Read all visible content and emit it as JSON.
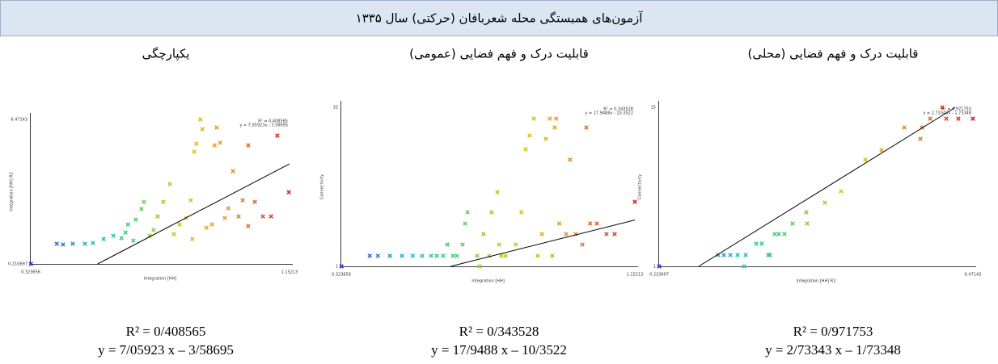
{
  "title": "آزمون‌های همبستگی محله شعربافان (حرکتی) سال ۱۳۳۵",
  "chart_data": [
    {
      "type": "scatter",
      "title": "یکپارچگی",
      "xlabel": "Integration [HH]",
      "ylabel": "Integration [HH] R2",
      "xlim": [
        0.323656,
        1.15213
      ],
      "ylim": [
        0.210697,
        6.47143
      ],
      "xticks": [
        0.323656,
        1.15213
      ],
      "yticks": [
        0.210697,
        6.47143
      ],
      "colormap": [
        "#2b2bd0",
        "#2f7fd6",
        "#22c2c2",
        "#3ccf7a",
        "#a6cc2e",
        "#d6c41c",
        "#e59a28",
        "#e0602a",
        "#d42020"
      ],
      "x": [
        0.324,
        0.407,
        0.427,
        0.458,
        0.497,
        0.523,
        0.557,
        0.588,
        0.614,
        0.627,
        0.635,
        0.652,
        0.66,
        0.678,
        0.686,
        0.704,
        0.717,
        0.73,
        0.748,
        0.769,
        0.782,
        0.8,
        0.821,
        0.836,
        0.841,
        0.847,
        0.854,
        0.867,
        0.873,
        0.886,
        0.904,
        0.912,
        0.919,
        0.93,
        0.945,
        0.956,
        0.971,
        0.989,
        1.002,
        1.02,
        1.02,
        1.041,
        1.067,
        1.093,
        1.113,
        1.15
      ],
      "values": [
        0.211,
        1.085,
        1.05,
        1.085,
        1.085,
        1.12,
        1.29,
        1.43,
        1.33,
        1.57,
        1.92,
        1.22,
        2.13,
        2.59,
        2.9,
        1.43,
        1.68,
        2.27,
        2.9,
        3.67,
        1.5,
        1.92,
        2.2,
        2.97,
        1.29,
        5.07,
        5.42,
        6.47,
        6.05,
        1.78,
        1.92,
        5.35,
        6.12,
        5.46,
        2.2,
        2.62,
        4.23,
        2.27,
        2.97,
        5.35,
        1.85,
        2.9,
        2.27,
        2.27,
        5.77,
        3.32
      ],
      "trendline": {
        "slope": 7.05923,
        "intercept": -3.58695
      },
      "annotation": [
        "R² = 0.408565",
        "y = 7.05923x - 3.58695"
      ],
      "caption": [
        "R² = 0/408565",
        "y = 7/05923 x – 3/58695"
      ]
    },
    {
      "type": "scatter",
      "title": "قابلیت درک و فهم فضایی (عمومی)",
      "xlabel": "Integration [HH]",
      "ylabel": "Connectivity",
      "xlim": [
        0.323656,
        1.15213
      ],
      "ylim": [
        1,
        33
      ],
      "xticks": [
        0.323656,
        1.15213
      ],
      "yticks": [
        1,
        33
      ],
      "colormap": [
        "#2b2bd0",
        "#2f7fd6",
        "#22c2c2",
        "#3ccf7a",
        "#a6cc2e",
        "#d6c41c",
        "#e59a28",
        "#e0602a",
        "#d42020"
      ],
      "x": [
        0.324,
        0.404,
        0.427,
        0.461,
        0.495,
        0.525,
        0.552,
        0.577,
        0.593,
        0.611,
        0.623,
        0.639,
        0.65,
        0.666,
        0.673,
        0.68,
        0.707,
        0.714,
        0.725,
        0.741,
        0.748,
        0.764,
        0.769,
        0.775,
        0.787,
        0.816,
        0.832,
        0.844,
        0.855,
        0.867,
        0.878,
        0.89,
        0.901,
        0.912,
        0.919,
        0.926,
        0.93,
        0.939,
        0.958,
        0.969,
        0.985,
        1.004,
        1.015,
        1.026,
        1.045,
        1.072,
        1.095,
        1.152
      ],
      "values": [
        1.0,
        3.11,
        3.11,
        3.11,
        3.11,
        3.11,
        3.11,
        3.11,
        3.11,
        3.11,
        5.39,
        3.11,
        3.11,
        5.39,
        9.61,
        11.88,
        3.11,
        1.0,
        7.5,
        3.11,
        11.88,
        15.94,
        5.39,
        3.11,
        3.11,
        5.39,
        11.88,
        24.55,
        27.32,
        30.73,
        3.11,
        7.5,
        26.67,
        30.73,
        3.11,
        28.94,
        30.73,
        9.61,
        7.5,
        22.45,
        7.5,
        5.39,
        28.94,
        9.61,
        9.61,
        7.5,
        7.5,
        14.0
      ],
      "trendline": {
        "slope": 17.9488,
        "intercept": -10.3522
      },
      "annotation": [
        "R² = 0.343528",
        "y = 17.9488x - 10.3522"
      ],
      "caption": [
        "R² = 0/343528",
        "y = 17/9488 x – 10/3522"
      ]
    },
    {
      "type": "scatter",
      "title": "قابلیت درک و فهم فضایی (محلی)",
      "xlabel": "Integration [HH] R2",
      "ylabel": "Connectivity",
      "xlim": [
        0.210697,
        6.47143
      ],
      "ylim": [
        1,
        15
      ],
      "xticks": [
        0.210697,
        6.47143
      ],
      "yticks": [
        1,
        15
      ],
      "colormap": [
        "#2b2bd0",
        "#2f7fd6",
        "#22c2c2",
        "#3ccf7a",
        "#a6cc2e",
        "#d6c41c",
        "#e59a28",
        "#e0602a",
        "#d42020"
      ],
      "x": [
        0.211,
        1.389,
        1.502,
        1.631,
        1.776,
        1.905,
        1.937,
        2.147,
        2.26,
        2.389,
        2.421,
        2.518,
        2.599,
        2.712,
        2.873,
        3.147,
        3.163,
        3.518,
        3.841,
        4.325,
        4.648,
        5.1,
        5.423,
        5.455,
        5.617,
        5.859,
        5.939,
        6.181,
        6.471
      ],
      "values": [
        1.0,
        2.0,
        2.0,
        2.0,
        2.0,
        1.0,
        2.0,
        3.0,
        3.0,
        2.0,
        2.0,
        3.84,
        3.84,
        3.84,
        4.77,
        5.76,
        4.77,
        6.61,
        7.61,
        10.38,
        11.23,
        13.22,
        12.23,
        13.22,
        14.0,
        15.0,
        14.0,
        14.0,
        14.0
      ],
      "trendline": {
        "slope": 2.73343,
        "intercept": -1.73348
      },
      "annotation": [
        "R² = 0.971753",
        "y = 2.73343x - 1.73348"
      ],
      "caption": [
        "R² = 0/971753",
        "y = 2/73343 x – 1/73348"
      ]
    }
  ]
}
